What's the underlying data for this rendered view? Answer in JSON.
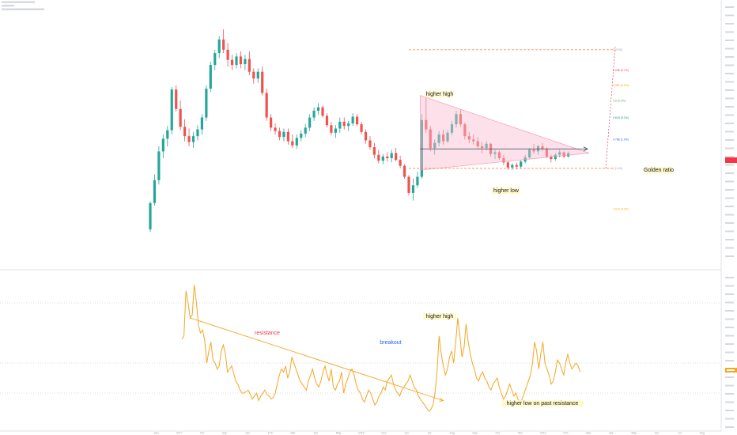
{
  "chart_data": [
    {
      "type": "candlestick",
      "title": "",
      "candles": [
        [
          14.0,
          30.5,
          12.5,
          29.5
        ],
        [
          29.5,
          46.5,
          28.0,
          43.0
        ],
        [
          43.0,
          63.0,
          40.5,
          60.0
        ],
        [
          60.0,
          70.0,
          56.0,
          67.5
        ],
        [
          67.5,
          75.0,
          63.0,
          72.5
        ],
        [
          72.5,
          98.0,
          70.0,
          96.5
        ],
        [
          96.5,
          99.0,
          83.5,
          85.0
        ],
        [
          85.0,
          90.0,
          72.5,
          74.5
        ],
        [
          74.5,
          79.0,
          66.0,
          69.0
        ],
        [
          69.0,
          73.5,
          63.0,
          65.5
        ],
        [
          65.5,
          71.5,
          62.0,
          69.0
        ],
        [
          69.0,
          75.5,
          66.5,
          73.0
        ],
        [
          73.0,
          82.0,
          70.0,
          80.0
        ],
        [
          80.0,
          99.0,
          78.0,
          97.0
        ],
        [
          97.0,
          113.0,
          95.0,
          111.0
        ],
        [
          111.0,
          120.0,
          108.0,
          118.0
        ],
        [
          118.0,
          128.0,
          115.0,
          126.0
        ],
        [
          126.0,
          132.0,
          118.0,
          120.0
        ],
        [
          120.0,
          124.0,
          110.0,
          114.0
        ],
        [
          114.0,
          117.0,
          108.0,
          111.0
        ],
        [
          111.0,
          118.0,
          109.0,
          116.0
        ],
        [
          116.0,
          119.0,
          109.0,
          111.5
        ],
        [
          111.5,
          117.0,
          108.0,
          114.5
        ],
        [
          114.5,
          119.0,
          105.0,
          107.0
        ],
        [
          107.0,
          109.0,
          100.0,
          103.0
        ],
        [
          103.0,
          109.0,
          100.5,
          107.0
        ],
        [
          107.0,
          110.0,
          93.0,
          94.5
        ],
        [
          94.5,
          97.0,
          78.0,
          80.0
        ],
        [
          80.0,
          82.0,
          72.0,
          74.0
        ],
        [
          74.0,
          76.5,
          70.0,
          72.0
        ],
        [
          72.0,
          74.0,
          66.5,
          68.5
        ],
        [
          68.5,
          73.5,
          66.0,
          71.5
        ],
        [
          71.5,
          73.5,
          64.0,
          66.0
        ],
        [
          66.0,
          70.0,
          62.0,
          63.5
        ],
        [
          63.5,
          70.0,
          61.5,
          68.0
        ],
        [
          68.0,
          72.5,
          66.0,
          70.5
        ],
        [
          70.5,
          76.0,
          68.5,
          74.0
        ],
        [
          74.0,
          82.0,
          72.0,
          80.0
        ],
        [
          80.0,
          86.0,
          78.0,
          84.0
        ],
        [
          84.0,
          88.5,
          81.5,
          86.0
        ],
        [
          86.0,
          87.0,
          80.0,
          81.0
        ],
        [
          81.0,
          82.5,
          74.0,
          75.5
        ],
        [
          75.5,
          77.5,
          69.5,
          71.0
        ],
        [
          71.0,
          75.5,
          68.0,
          73.5
        ],
        [
          73.5,
          80.0,
          71.0,
          77.5
        ],
        [
          77.5,
          80.0,
          73.0,
          75.0
        ],
        [
          75.0,
          78.0,
          72.0,
          76.5
        ],
        [
          76.5,
          82.5,
          75.0,
          80.5
        ],
        [
          80.5,
          82.0,
          75.0,
          76.0
        ],
        [
          76.0,
          77.5,
          70.0,
          71.5
        ],
        [
          71.5,
          73.0,
          64.5,
          66.5
        ],
        [
          66.5,
          69.0,
          61.0,
          62.5
        ],
        [
          62.5,
          65.0,
          56.0,
          58.0
        ],
        [
          58.0,
          61.0,
          53.0,
          54.5
        ],
        [
          54.5,
          58.5,
          52.5,
          57.0
        ],
        [
          57.0,
          59.5,
          54.0,
          56.0
        ],
        [
          56.0,
          61.0,
          53.5,
          59.0
        ],
        [
          59.0,
          62.0,
          54.0,
          55.0
        ],
        [
          55.0,
          57.5,
          50.0,
          51.5
        ],
        [
          51.5,
          52.5,
          44.0,
          45.0
        ],
        [
          45.0,
          46.0,
          34.0,
          35.5
        ],
        [
          35.5,
          44.0,
          31.0,
          40.0
        ],
        [
          40.0,
          48.0,
          38.5,
          45.0
        ],
        [
          45.0,
          82.0,
          44.0,
          78.5
        ],
        [
          78.5,
          94.0,
          71.0,
          73.0
        ],
        [
          73.0,
          75.0,
          60.0,
          62.0
        ],
        [
          62.0,
          67.0,
          58.0,
          65.0
        ],
        [
          65.0,
          72.0,
          63.0,
          70.0
        ],
        [
          70.0,
          73.0,
          64.0,
          66.0
        ],
        [
          66.0,
          72.5,
          65.0,
          71.0
        ],
        [
          71.0,
          78.0,
          69.5,
          76.0
        ],
        [
          76.0,
          84.0,
          74.0,
          82.0
        ],
        [
          82.0,
          84.5,
          74.5,
          76.0
        ],
        [
          76.0,
          77.0,
          67.0,
          69.0
        ],
        [
          69.0,
          71.5,
          65.0,
          67.0
        ],
        [
          67.0,
          70.0,
          64.0,
          66.0
        ],
        [
          66.0,
          68.5,
          61.5,
          63.0
        ],
        [
          63.0,
          65.5,
          59.0,
          62.0
        ],
        [
          62.0,
          66.0,
          60.5,
          64.5
        ],
        [
          64.5,
          65.0,
          57.0,
          58.5
        ],
        [
          58.5,
          61.0,
          55.5,
          59.5
        ],
        [
          59.5,
          60.5,
          55.0,
          56.0
        ],
        [
          56.0,
          58.0,
          52.0,
          53.5
        ],
        [
          53.5,
          54.5,
          49.0,
          50.5
        ],
        [
          50.5,
          53.0,
          49.0,
          52.0
        ],
        [
          52.0,
          53.5,
          49.5,
          51.0
        ],
        [
          51.0,
          55.0,
          50.0,
          54.0
        ],
        [
          54.0,
          58.0,
          53.0,
          56.5
        ],
        [
          56.5,
          62.0,
          55.5,
          61.0
        ],
        [
          61.0,
          64.5,
          58.5,
          60.0
        ],
        [
          60.0,
          64.0,
          58.0,
          63.0
        ],
        [
          63.0,
          65.0,
          60.0,
          61.5
        ],
        [
          61.5,
          62.5,
          56.0,
          57.0
        ],
        [
          57.0,
          58.0,
          53.5,
          55.5
        ],
        [
          55.5,
          59.0,
          54.5,
          58.0
        ],
        [
          58.0,
          61.0,
          56.5,
          59.5
        ],
        [
          59.5,
          60.0,
          56.0,
          57.0
        ],
        [
          57.0,
          60.0,
          56.5,
          59.0
        ]
      ],
      "xticks": [
        "Dec",
        "2017",
        "Oct",
        "Sep",
        "Jan",
        "Feb",
        "Mar",
        "Apr",
        "May",
        "2018",
        "Dec",
        "Jun",
        "Jul",
        "Aug",
        "Sep",
        "Oct",
        "Nov",
        "2019",
        "Feb",
        "Mar",
        "Apr",
        "May",
        "Jun",
        "Jul",
        "Aug"
      ],
      "fib_levels": [
        {
          "ratio": 0,
          "label": "0 (0.00)",
          "color": "#9e9e9e",
          "price": 120.0
        },
        {
          "ratio": 0.236,
          "label": "0.236 (0.7%)",
          "color": "#f23645",
          "price": 108.0
        },
        {
          "ratio": 0.382,
          "label": "0.382 (0.1%)",
          "color": "#ff9800",
          "price": 99.0
        },
        {
          "ratio": 0.5,
          "label": "0.5 (0.3%)",
          "color": "#4caf50",
          "price": 90.0
        },
        {
          "ratio": 0.618,
          "label": "0.618 (0.1%)",
          "color": "#089981",
          "price": 80.0
        },
        {
          "ratio": 0.786,
          "label": "0.786 (1.0%)",
          "color": "#2962ff",
          "price": 67.0
        },
        {
          "ratio": 1,
          "label": "1 (1.00)",
          "color": "#9e9e9e",
          "price": 50.0
        },
        {
          "ratio": 1.618,
          "label": "1.618 (0.3%)",
          "color": "#ffb300",
          "price": 26.0
        }
      ],
      "annotations": [
        {
          "text": "higher high",
          "color": "#1a1a1a"
        },
        {
          "text": "higher low",
          "color": "#1a1a1a"
        },
        {
          "text": "Golden ratio",
          "color": "#1a1a1a"
        }
      ],
      "last_price_badge": {
        "text": "",
        "color": "#f23645"
      }
    },
    {
      "type": "line",
      "title": "",
      "series": [
        {
          "color": "#f5a623",
          "values": [
            46,
            48,
            78,
            70,
            60,
            62,
            82,
            70,
            55,
            50,
            52,
            45,
            30,
            38,
            44,
            32,
            30,
            26,
            28,
            38,
            42,
            36,
            24,
            26,
            28,
            23,
            18,
            16,
            12,
            10,
            10,
            11,
            12,
            9,
            6,
            8,
            10,
            5,
            8,
            10,
            12,
            9,
            8,
            6,
            7,
            10,
            16,
            22,
            26,
            24,
            28,
            20,
            24,
            34,
            30,
            26,
            22,
            18,
            16,
            14,
            12,
            18,
            22,
            26,
            20,
            16,
            14,
            18,
            24,
            28,
            22,
            18,
            26,
            14,
            12,
            16,
            18,
            24,
            10,
            16,
            20,
            24,
            26,
            22,
            16,
            12,
            10,
            6,
            4,
            8,
            12,
            10,
            6,
            2,
            4,
            8,
            10,
            14,
            12,
            18,
            20,
            22,
            16,
            12,
            10,
            8,
            12,
            14,
            16,
            18,
            22,
            18,
            14,
            12,
            8,
            6,
            4,
            2,
            0,
            -2,
            -1,
            2,
            10,
            24,
            48,
            36,
            28,
            22,
            26,
            34,
            38,
            30,
            44,
            60,
            48,
            34,
            40,
            56,
            44,
            36,
            30,
            26,
            20,
            18,
            22,
            24,
            20,
            18,
            14,
            12,
            16,
            18,
            20,
            14,
            10,
            6,
            8,
            12,
            16,
            12,
            8,
            10,
            6,
            4,
            6,
            10,
            14,
            18,
            22,
            30,
            44,
            38,
            26,
            36,
            44,
            30,
            26,
            22,
            16,
            18,
            24,
            32,
            30,
            26,
            22,
            30,
            36,
            30,
            26,
            28,
            30,
            28,
            24
          ]
        }
      ],
      "ylim": [
        -10,
        90
      ],
      "xlim": [
        0,
        186
      ],
      "resistance_line": {
        "x0": 4,
        "y0": 60,
        "x1": 126,
        "y1": 5
      },
      "annotations": [
        {
          "text": "resistance",
          "color": "#f23645"
        },
        {
          "text": "breakout",
          "color": "#2962ff"
        },
        {
          "text": "higher high",
          "color": "#1a1a1a"
        },
        {
          "text": "higher low on past resistance",
          "color": "#1a1a1a"
        }
      ],
      "last_value_badge": {
        "text": "",
        "color": "#f5a623"
      }
    }
  ]
}
